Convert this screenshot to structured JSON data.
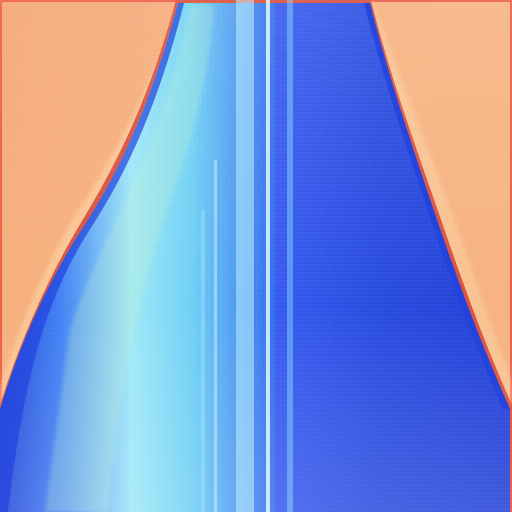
{
  "palette": {
    "background": "#f6ab74",
    "background_glow": "#ffd8a8",
    "edge_line": "#d8472f",
    "dark_blue": "#1d3bd6",
    "mid_blue": "#2f5cf0",
    "cyan": "#59c8f2",
    "light_cyan": "#a9ecff",
    "pale_green": "#b9f1c7"
  },
  "scene": {
    "subject_icon": "abstract-blue-flowing-shape-icon"
  }
}
